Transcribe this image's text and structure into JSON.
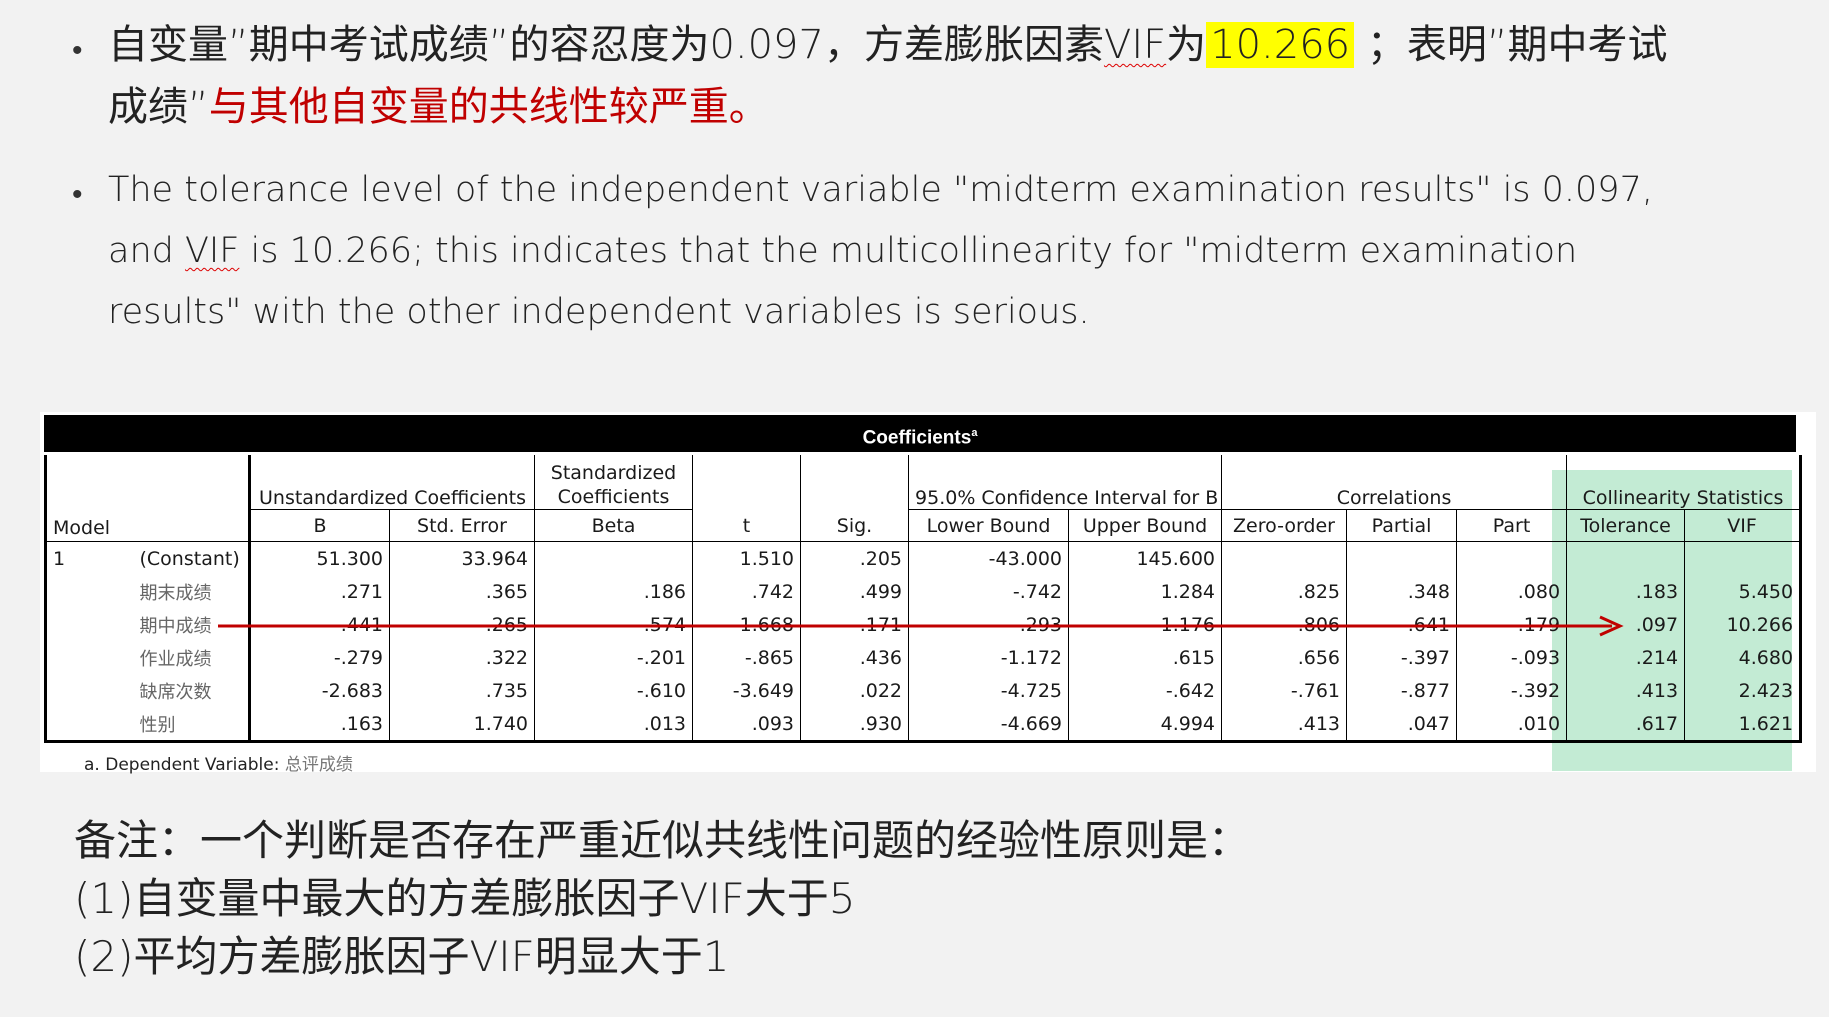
{
  "bullets": {
    "zh": {
      "part1": "自变量”期中考试成绩”的容忍度为0.097，方差膨胀因素",
      "vif": "VIF",
      "part2": "为",
      "value": "10.266",
      "part3": " ；表明”期中考试成绩”",
      "red": "与其他自变量的共线性较严重。"
    },
    "en": {
      "part1": "The tolerance level of the independent variable \"midterm examination results\" is 0.097, and ",
      "vif": "VIF",
      "part2": " is 10.266; this indicates that the multicollinearity for \"midterm examination results\" with the other independent variables is  serious."
    }
  },
  "table": {
    "title": "Coefficients",
    "title_sup": "a",
    "headers": {
      "model": "Model",
      "unstd": "Unstandardized Coefficients",
      "std": "Standardized Coefficients",
      "t": "t",
      "sig": "Sig.",
      "ci": "95.0% Confidence Interval for B",
      "corr": "Correlations",
      "coll": "Collinearity Statistics",
      "b": "B",
      "se": "Std. Error",
      "beta": "Beta",
      "lower": "Lower Bound",
      "upper": "Upper Bound",
      "zero": "Zero-order",
      "partial": "Partial",
      "part": "Part",
      "tol": "Tolerance",
      "vif": "VIF"
    },
    "model_no": "1",
    "rows": [
      {
        "label": "(Constant)",
        "b": "51.300",
        "se": "33.964",
        "beta": "",
        "t": "1.510",
        "sig": ".205",
        "lower": "-43.000",
        "upper": "145.600",
        "zero": "",
        "partial": "",
        "part": "",
        "tol": "",
        "vif": ""
      },
      {
        "label": "期末成绩",
        "b": ".271",
        "se": ".365",
        "beta": ".186",
        "t": ".742",
        "sig": ".499",
        "lower": "-.742",
        "upper": "1.284",
        "zero": ".825",
        "partial": ".348",
        "part": ".080",
        "tol": ".183",
        "vif": "5.450"
      },
      {
        "label": "期中成绩",
        "b": ".441",
        "se": ".265",
        "beta": ".574",
        "t": "1.668",
        "sig": ".171",
        "lower": "-.293",
        "upper": "1.176",
        "zero": ".806",
        "partial": ".641",
        "part": ".179",
        "tol": ".097",
        "vif": "10.266"
      },
      {
        "label": "作业成绩",
        "b": "-.279",
        "se": ".322",
        "beta": "-.201",
        "t": "-.865",
        "sig": ".436",
        "lower": "-1.172",
        "upper": ".615",
        "zero": ".656",
        "partial": "-.397",
        "part": "-.093",
        "tol": ".214",
        "vif": "4.680"
      },
      {
        "label": "缺席次数",
        "b": "-2.683",
        "se": ".735",
        "beta": "-.610",
        "t": "-3.649",
        "sig": ".022",
        "lower": "-4.725",
        "upper": "-.642",
        "zero": "-.761",
        "partial": "-.877",
        "part": "-.392",
        "tol": ".413",
        "vif": "2.423"
      },
      {
        "label": "性别",
        "b": ".163",
        "se": "1.740",
        "beta": ".013",
        "t": ".093",
        "sig": ".930",
        "lower": "-4.669",
        "upper": "4.994",
        "zero": ".413",
        "partial": ".047",
        "part": ".010",
        "tol": ".617",
        "vif": "1.621"
      }
    ],
    "footnote_prefix": "a. Dependent Variable: ",
    "footnote_var": "总评成绩"
  },
  "colors": {
    "highlight": "#ffff00",
    "red_text": "#c00000",
    "arrow": "#c00000",
    "collinearity_bg": "#bde9cf"
  },
  "remark": {
    "line1": "备注：一个判断是否存在严重近似共线性问题的经验性原则是：",
    "line2": "(1)自变量中最大的方差膨胀因子VIF大于5",
    "line3": "(2)平均方差膨胀因子VIF明显大于1"
  }
}
